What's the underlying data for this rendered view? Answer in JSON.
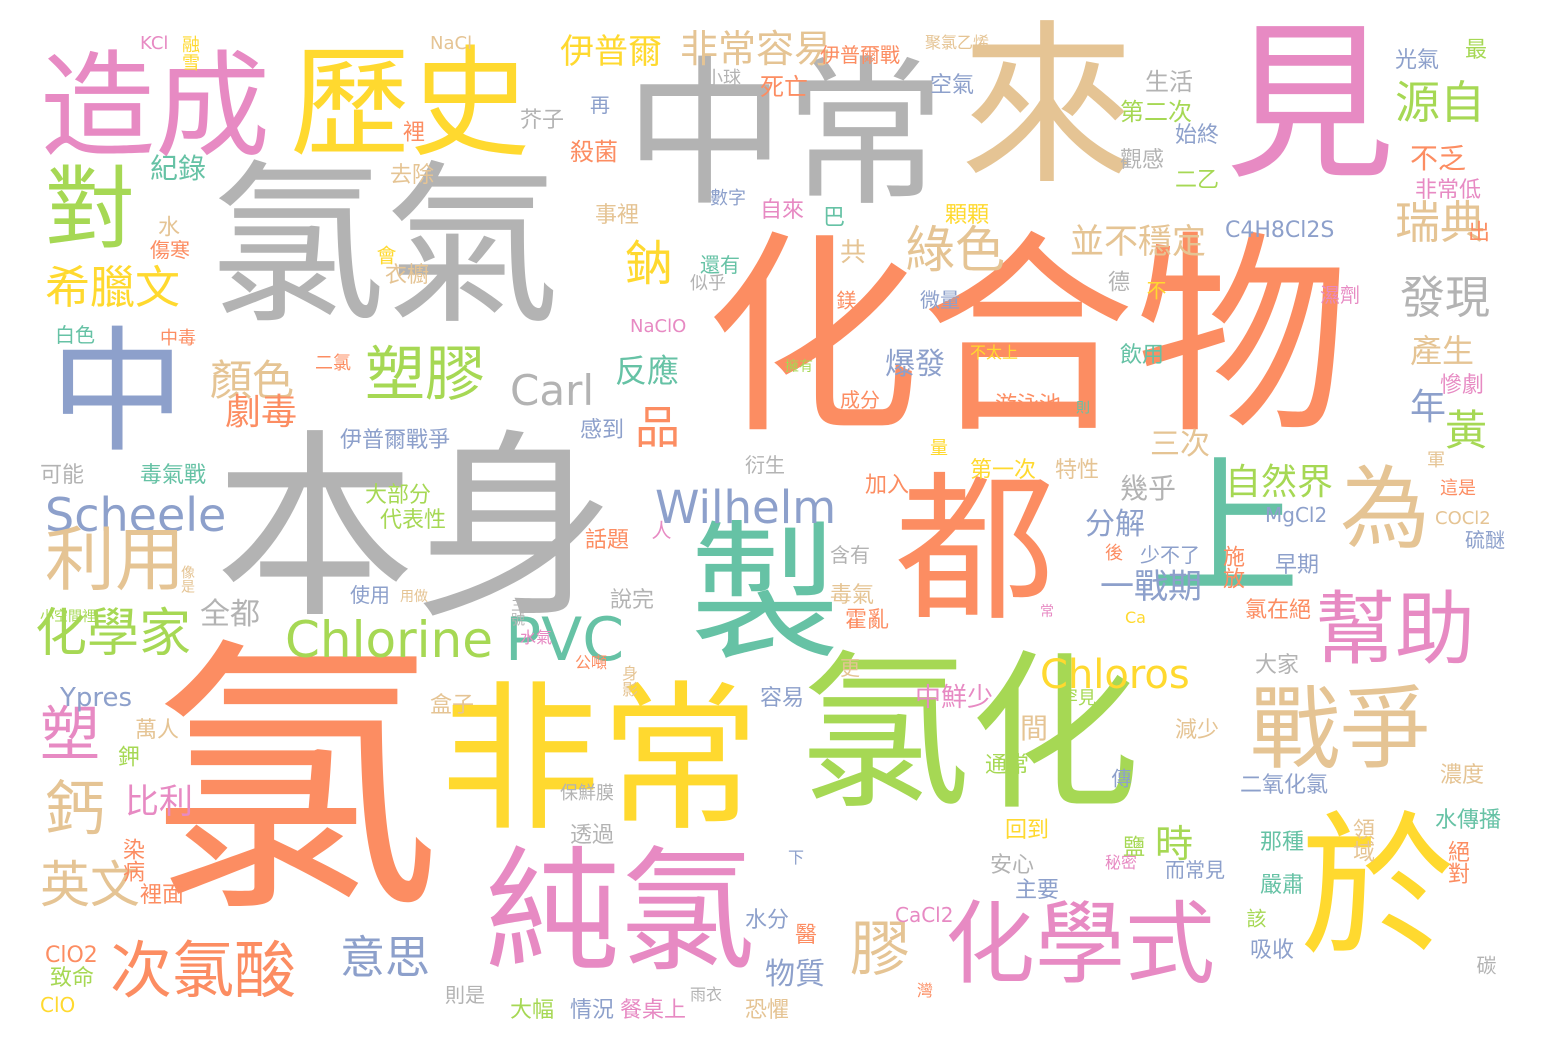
{
  "palette": {
    "orange": "#fc8d62",
    "grey": "#b3b3b3",
    "green": "#a6d854",
    "yellow": "#ffd92f",
    "tan": "#e5c494",
    "pink": "#e78ac3",
    "blue": "#8da0cb",
    "teal": "#66c2a5",
    "background": "#ffffff"
  },
  "words": [
    {
      "text": "氯",
      "c": "orange"
    },
    {
      "text": "化合物",
      "c": "orange"
    },
    {
      "text": "本身",
      "c": "grey"
    },
    {
      "text": "氯氣",
      "c": "grey"
    },
    {
      "text": "中常",
      "c": "grey"
    },
    {
      "text": "來",
      "c": "tan"
    },
    {
      "text": "見",
      "c": "pink"
    },
    {
      "text": "氯化",
      "c": "green"
    },
    {
      "text": "非常",
      "c": "yellow"
    },
    {
      "text": "都",
      "c": "orange"
    },
    {
      "text": "上",
      "c": "teal"
    },
    {
      "text": "製",
      "c": "teal"
    },
    {
      "text": "於",
      "c": "yellow"
    },
    {
      "text": "純氯",
      "c": "pink"
    },
    {
      "text": "中",
      "c": "blue"
    },
    {
      "text": "造成",
      "c": "pink"
    },
    {
      "text": "歷史",
      "c": "yellow"
    },
    {
      "text": "戰爭",
      "c": "tan"
    },
    {
      "text": "化學式",
      "c": "pink"
    },
    {
      "text": "為",
      "c": "tan"
    },
    {
      "text": "幫助",
      "c": "pink"
    },
    {
      "text": "對",
      "c": "green"
    },
    {
      "text": "PVC",
      "c": "teal"
    },
    {
      "text": "Chlorine",
      "c": "green"
    },
    {
      "text": "Wilhelm",
      "c": "blue"
    },
    {
      "text": "Scheele",
      "c": "blue"
    },
    {
      "text": "利用",
      "c": "tan"
    },
    {
      "text": "次氯酸",
      "c": "orange"
    },
    {
      "text": "塑膠",
      "c": "green"
    },
    {
      "text": "Carl",
      "c": "grey"
    },
    {
      "text": "Chloros",
      "c": "yellow"
    },
    {
      "text": "化學家",
      "c": "green"
    },
    {
      "text": "膠",
      "c": "tan"
    },
    {
      "text": "意思",
      "c": "blue"
    },
    {
      "text": "鈣",
      "c": "tan"
    },
    {
      "text": "塑",
      "c": "pink"
    },
    {
      "text": "英文",
      "c": "tan"
    },
    {
      "text": "希臘文",
      "c": "yellow"
    },
    {
      "text": "顏色",
      "c": "tan"
    },
    {
      "text": "劇毒",
      "c": "orange"
    },
    {
      "text": "綠色",
      "c": "tan"
    },
    {
      "text": "鈉",
      "c": "yellow"
    },
    {
      "text": "品",
      "c": "orange"
    },
    {
      "text": "瑞典",
      "c": "tan"
    },
    {
      "text": "發現",
      "c": "grey"
    },
    {
      "text": "源自",
      "c": "green"
    },
    {
      "text": "黃",
      "c": "green"
    },
    {
      "text": "年",
      "c": "blue"
    },
    {
      "text": "非常容易",
      "c": "tan"
    },
    {
      "text": "伊普爾",
      "c": "yellow"
    },
    {
      "text": "並不穩定",
      "c": "tan"
    },
    {
      "text": "自然界",
      "c": "green"
    },
    {
      "text": "一戰期",
      "c": "blue"
    },
    {
      "text": "分解",
      "c": "blue"
    },
    {
      "text": "產生",
      "c": "tan"
    },
    {
      "text": "三次",
      "c": "tan"
    },
    {
      "text": "幾乎",
      "c": "grey"
    },
    {
      "text": "時",
      "c": "green"
    },
    {
      "text": "物質",
      "c": "blue"
    },
    {
      "text": "間",
      "c": "tan"
    },
    {
      "text": "中鮮少",
      "c": "pink"
    },
    {
      "text": "比利",
      "c": "pink"
    },
    {
      "text": "爆發",
      "c": "blue"
    },
    {
      "text": "反應",
      "c": "teal"
    },
    {
      "text": "共",
      "c": "tan"
    },
    {
      "text": "不乏",
      "c": "orange"
    },
    {
      "text": "全都",
      "c": "grey"
    },
    {
      "text": "Ypres",
      "c": "blue"
    },
    {
      "text": "紀錄",
      "c": "teal"
    },
    {
      "text": "生活",
      "c": "grey"
    },
    {
      "text": "光氣",
      "c": "blue"
    },
    {
      "text": "最",
      "c": "green"
    },
    {
      "text": "第二次",
      "c": "green"
    },
    {
      "text": "始終",
      "c": "blue"
    },
    {
      "text": "二乙",
      "c": "green"
    },
    {
      "text": "非常低",
      "c": "pink"
    },
    {
      "text": "C4H8Cl2S",
      "c": "blue"
    },
    {
      "text": "出",
      "c": "orange"
    },
    {
      "text": "殺菌",
      "c": "orange"
    },
    {
      "text": "芥子",
      "c": "grey"
    },
    {
      "text": "再",
      "c": "blue"
    },
    {
      "text": "死亡",
      "c": "orange"
    },
    {
      "text": "小球",
      "c": "grey"
    },
    {
      "text": "伊普爾戰",
      "c": "orange"
    },
    {
      "text": "聚氯乙烯",
      "c": "tan"
    },
    {
      "text": "空氣",
      "c": "blue"
    },
    {
      "text": "KCl",
      "c": "pink"
    },
    {
      "text": "融雪",
      "c": "yellow"
    },
    {
      "text": "NaCl",
      "c": "tan"
    },
    {
      "text": "去除",
      "c": "tan"
    },
    {
      "text": "事裡",
      "c": "tan"
    },
    {
      "text": "數字",
      "c": "blue"
    },
    {
      "text": "自來",
      "c": "pink"
    },
    {
      "text": "巴",
      "c": "teal"
    },
    {
      "text": "顆顆",
      "c": "yellow"
    },
    {
      "text": "觀感",
      "c": "grey"
    },
    {
      "text": "水",
      "c": "tan"
    },
    {
      "text": "傷寒",
      "c": "orange"
    },
    {
      "text": "還有",
      "c": "teal"
    },
    {
      "text": "似乎",
      "c": "grey"
    },
    {
      "text": "會",
      "c": "yellow"
    },
    {
      "text": "衣櫥",
      "c": "tan"
    },
    {
      "text": "鎂",
      "c": "orange"
    },
    {
      "text": "微量",
      "c": "blue"
    },
    {
      "text": "不",
      "c": "yellow"
    },
    {
      "text": "德",
      "c": "grey"
    },
    {
      "text": "濕劑",
      "c": "pink"
    },
    {
      "text": "白色",
      "c": "teal"
    },
    {
      "text": "中毒",
      "c": "orange"
    },
    {
      "text": "NaClO",
      "c": "pink"
    },
    {
      "text": "二氯",
      "c": "orange"
    },
    {
      "text": "不太上",
      "c": "yellow"
    },
    {
      "text": "飲用",
      "c": "teal"
    },
    {
      "text": "慘劇",
      "c": "pink"
    },
    {
      "text": "擁有",
      "c": "green"
    },
    {
      "text": "成分",
      "c": "orange"
    },
    {
      "text": "游泳池",
      "c": "orange"
    },
    {
      "text": "則",
      "c": "teal"
    },
    {
      "text": "伊普爾戰爭",
      "c": "blue"
    },
    {
      "text": "感到",
      "c": "blue"
    },
    {
      "text": "可能",
      "c": "grey"
    },
    {
      "text": "毒氣戰",
      "c": "teal"
    },
    {
      "text": "衍生",
      "c": "grey"
    },
    {
      "text": "量",
      "c": "yellow"
    },
    {
      "text": "第一次",
      "c": "yellow"
    },
    {
      "text": "特性",
      "c": "tan"
    },
    {
      "text": "加入",
      "c": "orange"
    },
    {
      "text": "大部分",
      "c": "green"
    },
    {
      "text": "代表性",
      "c": "green"
    },
    {
      "text": "這是",
      "c": "orange"
    },
    {
      "text": "軍",
      "c": "tan"
    },
    {
      "text": "MgCl2",
      "c": "blue"
    },
    {
      "text": "COCl2",
      "c": "tan"
    },
    {
      "text": "硫醚",
      "c": "blue"
    },
    {
      "text": "人",
      "c": "pink"
    },
    {
      "text": "話題",
      "c": "orange"
    },
    {
      "text": "含有",
      "c": "grey"
    },
    {
      "text": "後",
      "c": "orange"
    },
    {
      "text": "少不了",
      "c": "blue"
    },
    {
      "text": "施放",
      "c": "orange"
    },
    {
      "text": "早期",
      "c": "blue"
    },
    {
      "text": "像是",
      "c": "tan"
    },
    {
      "text": "使用",
      "c": "blue"
    },
    {
      "text": "用做",
      "c": "tan"
    },
    {
      "text": "說完",
      "c": "grey"
    },
    {
      "text": "毒氣",
      "c": "tan"
    },
    {
      "text": "霍亂",
      "c": "orange"
    },
    {
      "text": "氯在絕",
      "c": "orange"
    },
    {
      "text": "小空間裡",
      "c": "green"
    },
    {
      "text": "三號",
      "c": "grey"
    },
    {
      "text": "常",
      "c": "pink"
    },
    {
      "text": "Ca",
      "c": "yellow"
    },
    {
      "text": "水氣",
      "c": "pink"
    },
    {
      "text": "公噸",
      "c": "orange"
    },
    {
      "text": "身影",
      "c": "tan"
    },
    {
      "text": "更",
      "c": "tan"
    },
    {
      "text": "大家",
      "c": "grey"
    },
    {
      "text": "盒子",
      "c": "tan"
    },
    {
      "text": "容易",
      "c": "blue"
    },
    {
      "text": "罕見",
      "c": "green"
    },
    {
      "text": "萬人",
      "c": "tan"
    },
    {
      "text": "鉀",
      "c": "green"
    },
    {
      "text": "減少",
      "c": "tan"
    },
    {
      "text": "通常",
      "c": "green"
    },
    {
      "text": "傳",
      "c": "blue"
    },
    {
      "text": "濃度",
      "c": "tan"
    },
    {
      "text": "保鮮膜",
      "c": "grey"
    },
    {
      "text": "領域",
      "c": "tan"
    },
    {
      "text": "二氧化氯",
      "c": "blue"
    },
    {
      "text": "水傳播",
      "c": "teal"
    },
    {
      "text": "回到",
      "c": "yellow"
    },
    {
      "text": "鹽",
      "c": "green"
    },
    {
      "text": "那種",
      "c": "teal"
    },
    {
      "text": "絕對",
      "c": "orange"
    },
    {
      "text": "透過",
      "c": "grey"
    },
    {
      "text": "染病",
      "c": "orange"
    },
    {
      "text": "下",
      "c": "blue"
    },
    {
      "text": "安心",
      "c": "grey"
    },
    {
      "text": "秘密",
      "c": "pink"
    },
    {
      "text": "而常見",
      "c": "blue"
    },
    {
      "text": "裡面",
      "c": "orange"
    },
    {
      "text": "主要",
      "c": "blue"
    },
    {
      "text": "嚴肅",
      "c": "teal"
    },
    {
      "text": "水分",
      "c": "blue"
    },
    {
      "text": "醫",
      "c": "orange"
    },
    {
      "text": "該",
      "c": "green"
    },
    {
      "text": "ClO2",
      "c": "orange"
    },
    {
      "text": "CaCl2",
      "c": "pink"
    },
    {
      "text": "吸收",
      "c": "blue"
    },
    {
      "text": "碳",
      "c": "grey"
    },
    {
      "text": "致命",
      "c": "green"
    },
    {
      "text": "則是",
      "c": "grey"
    },
    {
      "text": "雨衣",
      "c": "grey"
    },
    {
      "text": "灣",
      "c": "orange"
    },
    {
      "text": "ClO",
      "c": "yellow"
    },
    {
      "text": "大幅",
      "c": "green"
    },
    {
      "text": "情況",
      "c": "blue"
    },
    {
      "text": "餐桌上",
      "c": "pink"
    },
    {
      "text": "恐懼",
      "c": "tan"
    },
    {
      "text": "裡",
      "c": "orange"
    }
  ]
}
